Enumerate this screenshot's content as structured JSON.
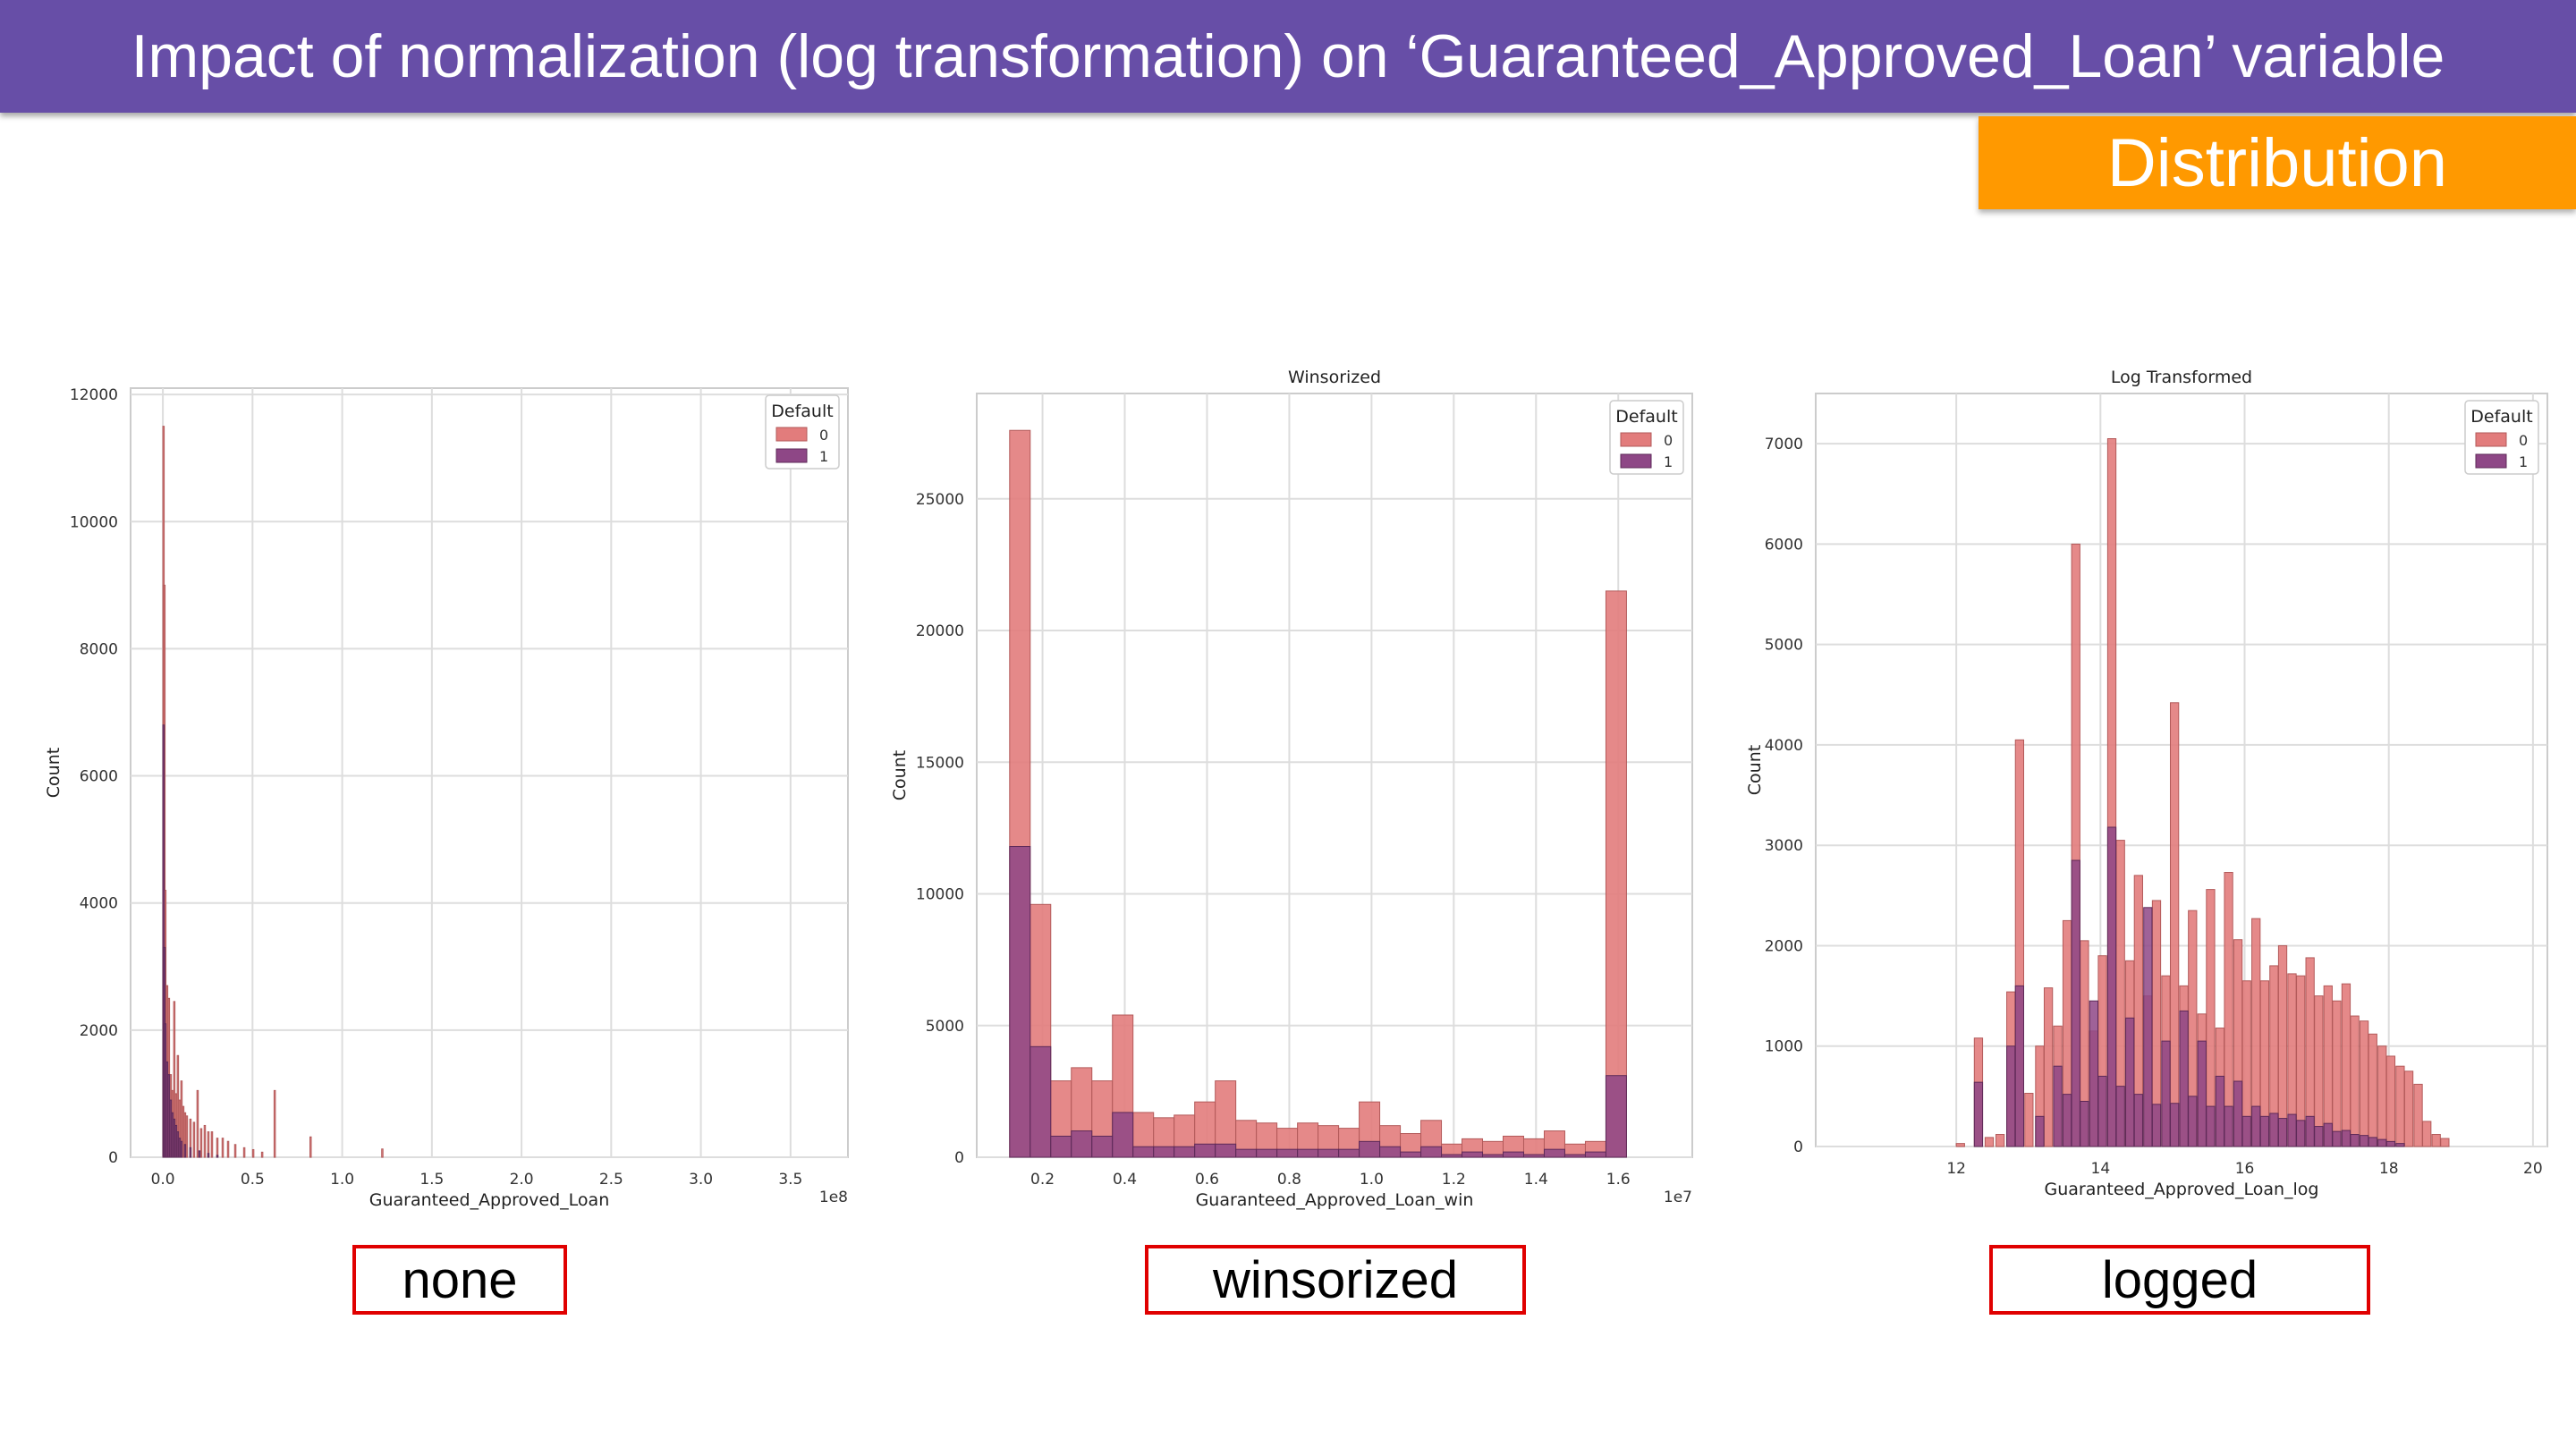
{
  "header": {
    "title": "Impact of normalization (log transformation) on ‘Guaranteed_Approved_Loan’ variable",
    "tag": "Distribution"
  },
  "colors": {
    "header_bg": "#674ea7",
    "tag_bg": "#ff9900",
    "label_border": "#e00000",
    "class0": "#e27c7c",
    "class1": "#8e4786"
  },
  "panels": [
    {
      "label": "none"
    },
    {
      "label": "winsorized"
    },
    {
      "label": "logged"
    }
  ],
  "chart_data": [
    {
      "type": "bar",
      "title": "",
      "xlabel": "Guaranteed_Approved_Loan",
      "ylabel": "Count",
      "x_offset_text": "1e8",
      "xlim": [
        -0.18,
        3.82
      ],
      "ylim": [
        0,
        12100
      ],
      "xticks": [
        0.0,
        0.5,
        1.0,
        1.5,
        2.0,
        2.5,
        3.0,
        3.5
      ],
      "xtick_labels": [
        "0.0",
        "0.5",
        "1.0",
        "1.5",
        "2.0",
        "2.5",
        "3.0",
        "3.5"
      ],
      "yticks": [
        0,
        2000,
        4000,
        6000,
        8000,
        10000,
        12000
      ],
      "grid": true,
      "legend": {
        "title": "Default",
        "position": "top-right",
        "entries": [
          "0",
          "1"
        ]
      },
      "bin_width": 0.005,
      "series": [
        {
          "name": "0",
          "x": [
            0.0,
            0.005,
            0.01,
            0.02,
            0.03,
            0.04,
            0.05,
            0.06,
            0.07,
            0.08,
            0.09,
            0.1,
            0.11,
            0.12,
            0.13,
            0.15,
            0.17,
            0.19,
            0.21,
            0.23,
            0.25,
            0.27,
            0.3,
            0.33,
            0.36,
            0.4,
            0.45,
            0.5,
            0.55,
            0.62,
            0.82,
            1.22
          ],
          "values": [
            11500,
            9000,
            4200,
            2700,
            2500,
            1300,
            1050,
            2450,
            1000,
            1600,
            900,
            1200,
            800,
            700,
            650,
            600,
            550,
            1050,
            450,
            500,
            400,
            400,
            300,
            300,
            250,
            200,
            150,
            120,
            80,
            1050,
            320,
            130
          ]
        },
        {
          "name": "1",
          "x": [
            0.0,
            0.005,
            0.01,
            0.02,
            0.03,
            0.04,
            0.05,
            0.06,
            0.07,
            0.08,
            0.09,
            0.1,
            0.12,
            0.15,
            0.2,
            0.25,
            0.3
          ],
          "values": [
            6800,
            3300,
            2100,
            1500,
            1300,
            900,
            700,
            600,
            500,
            400,
            300,
            250,
            200,
            150,
            100,
            60,
            30
          ]
        }
      ]
    },
    {
      "type": "bar",
      "title": "Winsorized",
      "xlabel": "Guaranteed_Approved_Loan_win",
      "ylabel": "Count",
      "x_offset_text": "1e7",
      "xlim": [
        0.04,
        1.78
      ],
      "ylim": [
        0,
        29000
      ],
      "xticks": [
        0.2,
        0.4,
        0.6,
        0.8,
        1.0,
        1.2,
        1.4,
        1.6
      ],
      "xtick_labels": [
        "0.2",
        "0.4",
        "0.6",
        "0.8",
        "1.0",
        "1.2",
        "1.4",
        "1.6"
      ],
      "yticks": [
        0,
        5000,
        10000,
        15000,
        20000,
        25000
      ],
      "grid": true,
      "legend": {
        "title": "Default",
        "position": "top-right",
        "entries": [
          "0",
          "1"
        ]
      },
      "bin_start": 0.12,
      "bin_width": 0.05,
      "series": [
        {
          "name": "0",
          "values": [
            27600,
            9600,
            2900,
            3400,
            2900,
            5400,
            1700,
            1500,
            1600,
            2100,
            2900,
            1400,
            1300,
            1100,
            1300,
            1200,
            1100,
            2100,
            1200,
            900,
            1400,
            500,
            700,
            600,
            800,
            700,
            1000,
            500,
            600,
            21500
          ]
        },
        {
          "name": "1",
          "values": [
            11800,
            4200,
            800,
            1000,
            800,
            1700,
            400,
            400,
            400,
            500,
            500,
            300,
            300,
            300,
            300,
            300,
            300,
            600,
            400,
            200,
            400,
            100,
            200,
            100,
            200,
            100,
            300,
            100,
            200,
            3100
          ]
        }
      ]
    },
    {
      "type": "bar",
      "title": "Log Transformed",
      "xlabel": "Guaranteed_Approved_Loan_log",
      "ylabel": "Count",
      "xlim": [
        10.05,
        20.2
      ],
      "ylim": [
        0,
        7500
      ],
      "xticks": [
        12,
        14,
        16,
        18,
        20
      ],
      "xtick_labels": [
        "12",
        "14",
        "16",
        "18",
        "20"
      ],
      "yticks": [
        0,
        1000,
        2000,
        3000,
        4000,
        5000,
        6000,
        7000
      ],
      "grid": true,
      "legend": {
        "title": "Default",
        "position": "top-right",
        "entries": [
          "0",
          "1"
        ]
      },
      "bin_width": 0.115,
      "series": [
        {
          "name": "0",
          "x": [
            12.0,
            12.25,
            12.4,
            12.55,
            12.7,
            12.82,
            12.95,
            13.1,
            13.22,
            13.35,
            13.48,
            13.6,
            13.72,
            13.85,
            13.97,
            14.1,
            14.22,
            14.35,
            14.47,
            14.6,
            14.72,
            14.85,
            14.97,
            15.1,
            15.22,
            15.35,
            15.47,
            15.6,
            15.72,
            15.85,
            15.97,
            16.1,
            16.22,
            16.35,
            16.47,
            16.6,
            16.72,
            16.85,
            16.97,
            17.1,
            17.22,
            17.35,
            17.47,
            17.6,
            17.72,
            17.85,
            17.97,
            18.1,
            18.22,
            18.35,
            18.47,
            18.6,
            18.72
          ],
          "values": [
            30,
            1080,
            90,
            120,
            1540,
            4050,
            530,
            1000,
            1580,
            1200,
            2250,
            6000,
            2050,
            1150,
            1900,
            7050,
            3050,
            1850,
            2700,
            1500,
            2450,
            1700,
            4420,
            1600,
            2350,
            1320,
            2560,
            1180,
            2730,
            2060,
            1650,
            2270,
            1650,
            1800,
            2000,
            1720,
            1700,
            1880,
            1500,
            1600,
            1450,
            1620,
            1300,
            1250,
            1120,
            1000,
            900,
            800,
            750,
            620,
            250,
            120,
            80
          ]
        },
        {
          "name": "1",
          "x": [
            12.25,
            12.7,
            12.82,
            13.1,
            13.35,
            13.48,
            13.6,
            13.72,
            13.85,
            13.97,
            14.1,
            14.22,
            14.35,
            14.47,
            14.6,
            14.72,
            14.85,
            14.97,
            15.1,
            15.22,
            15.35,
            15.47,
            15.6,
            15.72,
            15.85,
            15.97,
            16.1,
            16.22,
            16.35,
            16.47,
            16.6,
            16.72,
            16.85,
            16.97,
            17.1,
            17.22,
            17.35,
            17.47,
            17.6,
            17.72,
            17.85,
            17.97,
            18.1
          ],
          "values": [
            640,
            1000,
            1600,
            300,
            800,
            520,
            2850,
            450,
            1450,
            700,
            3180,
            600,
            1280,
            520,
            2380,
            420,
            1050,
            430,
            1350,
            500,
            1050,
            400,
            700,
            400,
            650,
            300,
            400,
            300,
            330,
            280,
            320,
            260,
            300,
            200,
            230,
            150,
            160,
            120,
            110,
            90,
            70,
            50,
            30
          ]
        }
      ]
    }
  ]
}
